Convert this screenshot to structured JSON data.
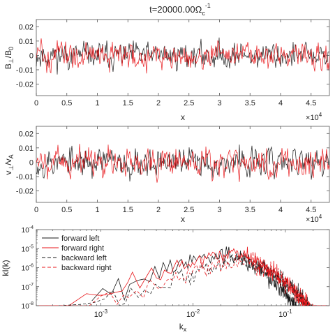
{
  "figure": {
    "title_text": "t=20000.00",
    "title_symbol": "Ω",
    "title_sub": "c",
    "title_sup": "-1"
  },
  "chart_data": [
    {
      "type": "line",
      "xlabel": "x",
      "ylabel_main": "B",
      "ylabel_sub": "⊥",
      "ylabel_rest": "/B",
      "ylabel_sub2": "0",
      "xlim": [
        0,
        4.8
      ],
      "ylim": [
        -0.028,
        0.025
      ],
      "x_scale_base": "10",
      "x_scale_exp": "4",
      "x_ticks": [
        "0",
        "0.5",
        "1",
        "1.5",
        "2",
        "2.5",
        "3",
        "3.5",
        "4",
        "4.5"
      ],
      "y_ticks": [
        "-0.02",
        "-0.01",
        "0",
        "0.01",
        "0.02"
      ],
      "series_colors": [
        "#1a1a1a",
        "#e8171b"
      ],
      "n_samples": 420,
      "amplitude": 0.008
    },
    {
      "type": "line",
      "xlabel": "x",
      "ylabel_main": "v",
      "ylabel_sub": "⊥",
      "ylabel_rest": "/v",
      "ylabel_sub2": "A",
      "xlim": [
        0,
        4.8
      ],
      "ylim": [
        -0.028,
        0.025
      ],
      "x_scale_base": "10",
      "x_scale_exp": "4",
      "x_ticks": [
        "0",
        "0.5",
        "1",
        "1.5",
        "2",
        "2.5",
        "3",
        "3.5",
        "4",
        "4.5"
      ],
      "y_ticks": [
        "-0.02",
        "-0.01",
        "0",
        "0.01",
        "0.02"
      ],
      "series_colors": [
        "#1a1a1a",
        "#e8171b"
      ],
      "n_samples": 420,
      "amplitude": 0.009
    },
    {
      "type": "line",
      "x_scale": "log",
      "y_scale": "log",
      "xlabel_main": "k",
      "xlabel_sub": "x",
      "ylabel": "kI(k)",
      "xlim": [
        0.0002,
        0.3
      ],
      "ylim": [
        1e-08,
        0.0001
      ],
      "x_ticks": [
        {
          "base": "10",
          "exp": "-3",
          "value": 0.001
        },
        {
          "base": "10",
          "exp": "-2",
          "value": 0.01
        },
        {
          "base": "10",
          "exp": "-1",
          "value": 0.1
        }
      ],
      "y_ticks": [
        {
          "base": "10",
          "exp": "-8",
          "value": 1e-08
        },
        {
          "base": "10",
          "exp": "-7",
          "value": 1e-07
        },
        {
          "base": "10",
          "exp": "-6",
          "value": 1e-06
        },
        {
          "base": "10",
          "exp": "-5",
          "value": 1e-05
        },
        {
          "base": "10",
          "exp": "-4",
          "value": 0.0001
        }
      ],
      "legend_position": "top-left",
      "series": [
        {
          "name": "forward left",
          "color": "#1a1a1a",
          "dash": "solid",
          "k_start": 0.0008,
          "peak_k": 0.02,
          "peak": 6e-06
        },
        {
          "name": "forward right",
          "color": "#e8171b",
          "dash": "solid",
          "k_start": 0.0002,
          "peak_k": 0.025,
          "peak": 7e-06
        },
        {
          "name": "backward left",
          "color": "#1a1a1a",
          "dash": "dashed",
          "k_start": 0.00035,
          "peak_k": 0.03,
          "peak": 3e-06
        },
        {
          "name": "backward right",
          "color": "#e8171b",
          "dash": "dashed",
          "k_start": 0.00025,
          "peak_k": 0.03,
          "peak": 3e-06
        }
      ]
    }
  ]
}
